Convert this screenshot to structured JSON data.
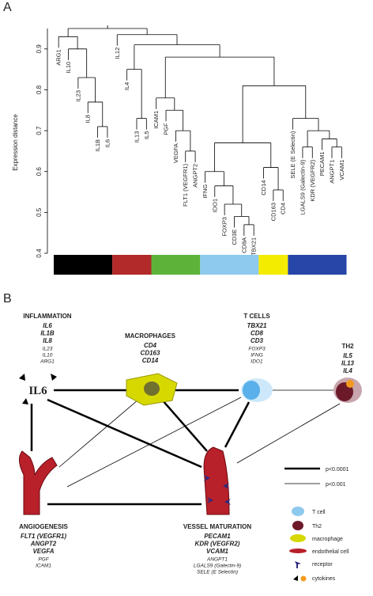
{
  "panel_a": {
    "label": "A",
    "axis_label": "Expression distance",
    "ylim": [
      0.4,
      0.95
    ],
    "yticks": [
      0.4,
      0.5,
      0.6,
      0.7,
      0.8,
      0.9
    ],
    "tree": {
      "height": 0.95,
      "children": [
        {
          "height": 0.93,
          "children": [
            "ARG1",
            {
              "height": 0.9,
              "children": [
                "IL10",
                {
                  "height": 0.83,
                  "children": [
                    "IL23",
                    {
                      "height": 0.77,
                      "children": [
                        "IL8",
                        {
                          "height": 0.71,
                          "children": [
                            "IL1B",
                            "IL6"
                          ]
                        }
                      ]
                    }
                  ]
                }
              ]
            }
          ]
        },
        {
          "height": 0.935,
          "children": [
            "IL12",
            {
              "height": 0.91,
              "children": [
                {
                  "height": 0.85,
                  "children": [
                    "IL4",
                    {
                      "height": 0.73,
                      "children": [
                        "IL13",
                        "IL5"
                      ]
                    }
                  ]
                },
                {
                  "height": 0.88,
                  "children": [
                    {
                      "height": 0.78,
                      "children": [
                        "ICAM1",
                        {
                          "height": 0.75,
                          "children": [
                            "PGF",
                            {
                              "height": 0.7,
                              "children": [
                                "VEGFA",
                                {
                                  "height": 0.65,
                                  "children": [
                                    "FLT1 (VEGFR1)",
                                    "ANGPT2"
                                  ]
                                }
                              ]
                            }
                          ]
                        }
                      ]
                    },
                    {
                      "height": 0.81,
                      "children": [
                        {
                          "height": 0.67,
                          "children": [
                            {
                              "height": 0.6,
                              "children": [
                                "IFNG",
                                {
                                  "height": 0.565,
                                  "children": [
                                    "IDO1",
                                    {
                                      "height": 0.52,
                                      "children": [
                                        "FOXP3",
                                        {
                                          "height": 0.49,
                                          "children": [
                                            "CD3E",
                                            {
                                              "height": 0.47,
                                              "children": [
                                                "CD8A",
                                                "TBX21"
                                              ]
                                            }
                                          ]
                                        }
                                      ]
                                    }
                                  ]
                                }
                              ]
                            },
                            {
                              "height": 0.61,
                              "children": [
                                "CD14",
                                {
                                  "height": 0.555,
                                  "children": [
                                    "CD163",
                                    "CD4"
                                  ]
                                }
                              ]
                            }
                          ]
                        },
                        {
                          "height": 0.73,
                          "children": [
                            "SELE (E Selectin)",
                            {
                              "height": 0.7,
                              "children": [
                                {
                                  "height": 0.66,
                                  "children": [
                                    "LGALS9 (Galectin-9)",
                                    "KDR (VEGFR2)"
                                  ]
                                },
                                {
                                  "height": 0.68,
                                  "children": [
                                    "PECAM1",
                                    {
                                      "height": 0.66,
                                      "children": [
                                        "ANGPT1",
                                        "VCAM1"
                                      ]
                                    }
                                  ]
                                }
                              ]
                            }
                          ]
                        }
                      ]
                    }
                  ]
                }
              ]
            }
          ]
        }
      ]
    },
    "colorbar": [
      "#000000",
      "#b22a2a",
      "#5db33a",
      "#8ec9ee",
      "#f4ec00",
      "#2746a7"
    ]
  },
  "panel_b": {
    "label": "B",
    "inflammation": {
      "title": "INFLAMMATION",
      "bold": [
        "IL6",
        "IL1B",
        "IL8"
      ],
      "plain": [
        "IL23",
        "IL10",
        "ARG1"
      ],
      "icon_text": "IL6"
    },
    "macrophages": {
      "title": "MACROPHAGES",
      "bold": [
        "CD4",
        "CD163",
        "CD14"
      ],
      "plain": []
    },
    "t_cells": {
      "title": "T CELLS",
      "bold": [
        "TBX21",
        "CD8",
        "CD3"
      ],
      "plain": [
        "FOXP3",
        "IFNG",
        "IDO1"
      ]
    },
    "th2": {
      "title": "TH2",
      "bold": [
        "IL5",
        "IL13",
        "IL4"
      ],
      "plain": []
    },
    "angiogenesis": {
      "title": "ANGIOGENESIS",
      "bold": [
        "FLT1 (VEGFR1)",
        "ANGPT2",
        "VEGFA"
      ],
      "plain": [
        "PGF",
        "ICAM1"
      ]
    },
    "vessel_maturation": {
      "title": "VESSEL MATURATION",
      "bold": [
        "PECAM1",
        "KDR (VEGFR2)",
        "VCAM1"
      ],
      "plain": [
        "ANGPT1",
        "LGALS9 (Galectin-9)",
        "SELE (E Selectin)"
      ]
    },
    "legend": {
      "thick": "p<0.0001",
      "thin": "p<0.001",
      "t_cell": "T cell",
      "th2": "Th2",
      "macrophage": "macrophage",
      "endothelial": "endothelial cell",
      "receptor": "receptor",
      "cytokines": "cytokines"
    }
  }
}
